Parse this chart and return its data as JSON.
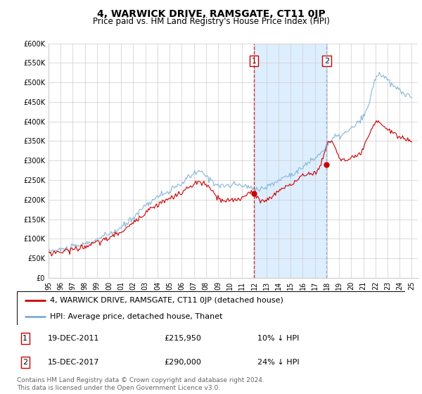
{
  "title": "4, WARWICK DRIVE, RAMSGATE, CT11 0JP",
  "subtitle": "Price paid vs. HM Land Registry's House Price Index (HPI)",
  "ylim": [
    0,
    600000
  ],
  "yticks": [
    0,
    50000,
    100000,
    150000,
    200000,
    250000,
    300000,
    350000,
    400000,
    450000,
    500000,
    550000,
    600000
  ],
  "ytick_labels": [
    "£0",
    "£50K",
    "£100K",
    "£150K",
    "£200K",
    "£250K",
    "£300K",
    "£350K",
    "£400K",
    "£450K",
    "£500K",
    "£550K",
    "£600K"
  ],
  "xmin": 1995.0,
  "xmax": 2025.5,
  "xtick_years": [
    1995,
    1996,
    1997,
    1998,
    1999,
    2000,
    2001,
    2002,
    2003,
    2004,
    2005,
    2006,
    2007,
    2008,
    2009,
    2010,
    2011,
    2012,
    2013,
    2014,
    2015,
    2016,
    2017,
    2018,
    2019,
    2020,
    2021,
    2022,
    2023,
    2024,
    2025
  ],
  "sale1_x": 2011.96,
  "sale1_price": 215950,
  "sale2_x": 2017.96,
  "sale2_price": 290000,
  "vline1_color": "#cc0000",
  "vline2_color": "#8899bb",
  "shade_color": "#ddeeff",
  "line_red_color": "#cc0000",
  "line_blue_color": "#7bafd4",
  "grid_color": "#cccccc",
  "legend_line1": "4, WARWICK DRIVE, RAMSGATE, CT11 0JP (detached house)",
  "legend_line2": "HPI: Average price, detached house, Thanet",
  "annotation1_num": "1",
  "annotation1_date": "19-DEC-2011",
  "annotation1_price": "£215,950",
  "annotation1_hpi": "10% ↓ HPI",
  "annotation2_num": "2",
  "annotation2_date": "15-DEC-2017",
  "annotation2_price": "£290,000",
  "annotation2_hpi": "24% ↓ HPI",
  "footer": "Contains HM Land Registry data © Crown copyright and database right 2024.\nThis data is licensed under the Open Government Licence v3.0.",
  "title_fontsize": 10,
  "subtitle_fontsize": 8.5,
  "tick_fontsize": 7,
  "legend_fontsize": 8,
  "annot_fontsize": 8
}
